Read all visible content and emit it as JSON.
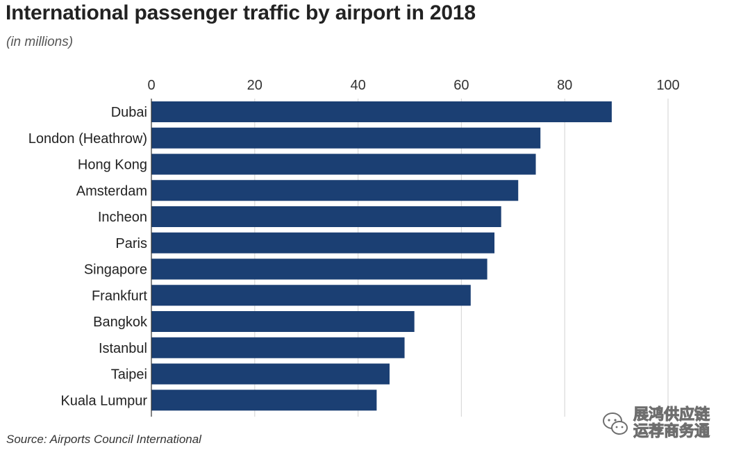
{
  "title": "International passenger traffic by airport in 2018",
  "subtitle": "(in millions)",
  "source": "Source: Airports Council International",
  "watermark": {
    "line1": "展鸿供应链",
    "line2": "运荐商务通"
  },
  "colors": {
    "bar": "#1b3f73",
    "grid": "#d9d9d9",
    "axis": "#333333"
  },
  "chart_data": {
    "type": "bar",
    "orientation": "horizontal",
    "title": "International passenger traffic by airport in 2018",
    "subtitle": "(in millions)",
    "xlabel": "",
    "ylabel": "",
    "xlim": [
      0,
      100
    ],
    "x_ticks": [
      0,
      20,
      40,
      60,
      80,
      100
    ],
    "x_axis_position": "top",
    "grid": true,
    "categories": [
      "Dubai",
      "London (Heathrow)",
      "Hong Kong",
      "Amsterdam",
      "Incheon",
      "Paris",
      "Singapore",
      "Frankfurt",
      "Bangkok",
      "Istanbul",
      "Taipei",
      "Kuala Lumpur"
    ],
    "values": [
      89.1,
      75.3,
      74.4,
      71.0,
      67.7,
      66.4,
      65.0,
      61.8,
      50.9,
      49.0,
      46.1,
      43.6
    ]
  }
}
